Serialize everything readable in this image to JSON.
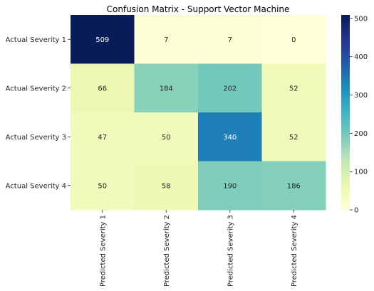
{
  "chart_data": {
    "type": "heatmap",
    "title": "Confusion Matrix - Support Vector Machine",
    "row_labels": [
      "Actual Severity 1",
      "Actual Severity 2",
      "Actual Severity 3",
      "Actual Severity 4"
    ],
    "col_labels": [
      "Predicted Severity 1",
      "Predicted Severity 2",
      "Predicted Severity 3",
      "Predicted Severity 4"
    ],
    "values": [
      [
        509,
        7,
        7,
        0
      ],
      [
        66,
        184,
        202,
        52
      ],
      [
        47,
        50,
        340,
        52
      ],
      [
        50,
        58,
        190,
        186
      ]
    ],
    "colormap": "YlGnBu",
    "colorbar": {
      "min": 0,
      "max": 509,
      "ticks": [
        0,
        100,
        200,
        300,
        400,
        500
      ]
    }
  }
}
